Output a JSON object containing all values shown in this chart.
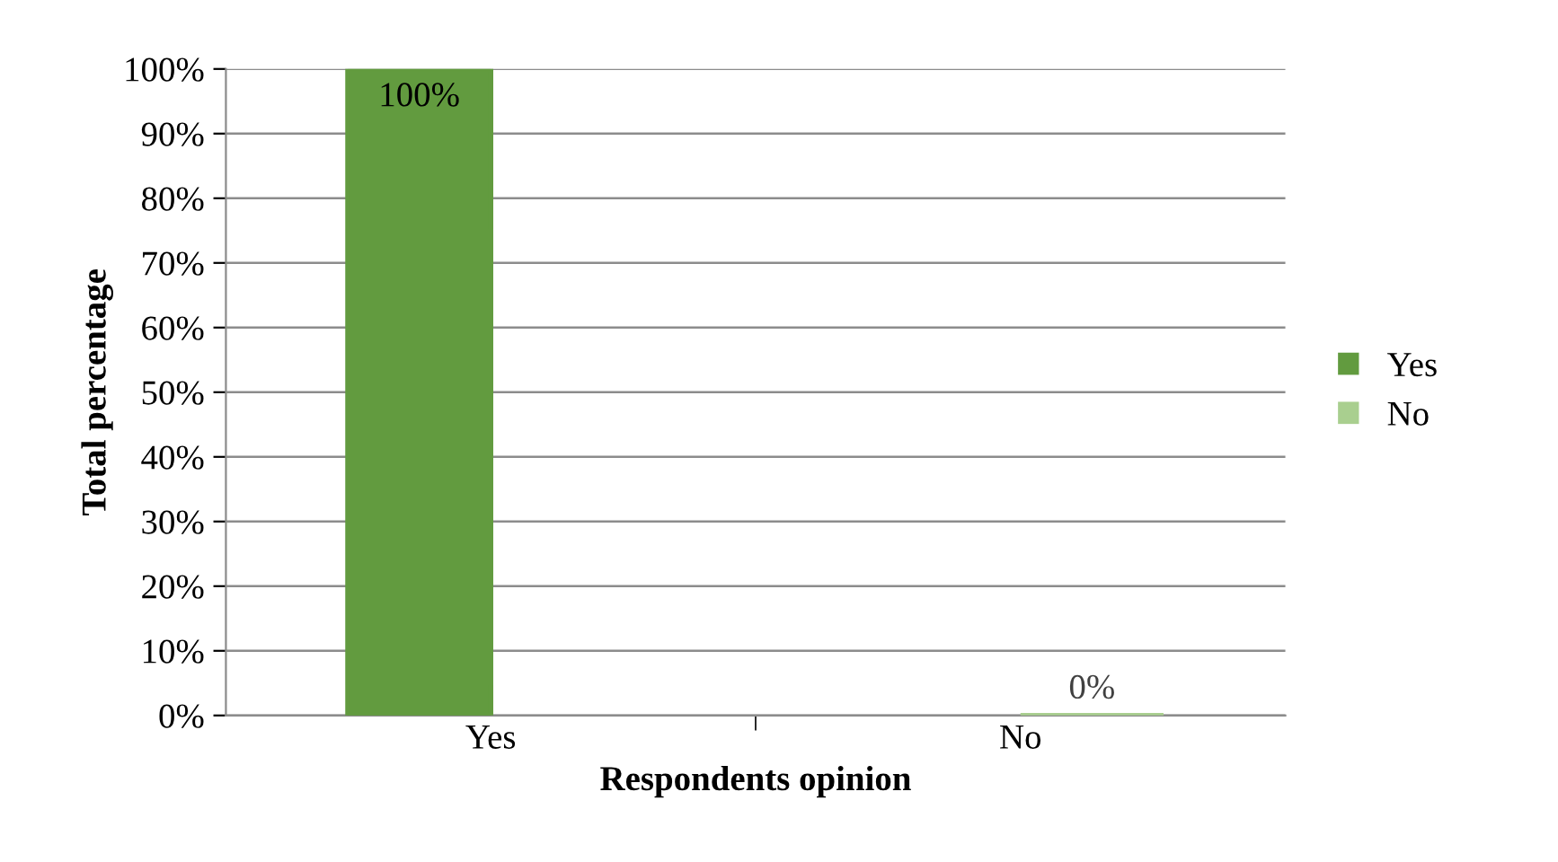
{
  "chart_data": {
    "type": "bar",
    "xlabel": "Respondents opinion",
    "ylabel": "Total percentage",
    "categories": [
      "Yes",
      "No"
    ],
    "series": [
      {
        "name": "Yes",
        "color": "#629b3f",
        "values": [
          100,
          null
        ],
        "value_labels": [
          "100%",
          null
        ]
      },
      {
        "name": "No",
        "color": "#a9cf8f",
        "values": [
          null,
          0
        ],
        "value_labels": [
          null,
          "0%"
        ]
      }
    ],
    "ylim": [
      0,
      100
    ],
    "yticks": [
      {
        "value": 0,
        "label": "0%"
      },
      {
        "value": 10,
        "label": "10%"
      },
      {
        "value": 20,
        "label": "20%"
      },
      {
        "value": 30,
        "label": "30%"
      },
      {
        "value": 40,
        "label": "40%"
      },
      {
        "value": 50,
        "label": "50%"
      },
      {
        "value": 60,
        "label": "60%"
      },
      {
        "value": 70,
        "label": "70%"
      },
      {
        "value": 80,
        "label": "80%"
      },
      {
        "value": 90,
        "label": "90%"
      },
      {
        "value": 100,
        "label": "100%"
      }
    ],
    "grid": "y",
    "legend": "right"
  }
}
